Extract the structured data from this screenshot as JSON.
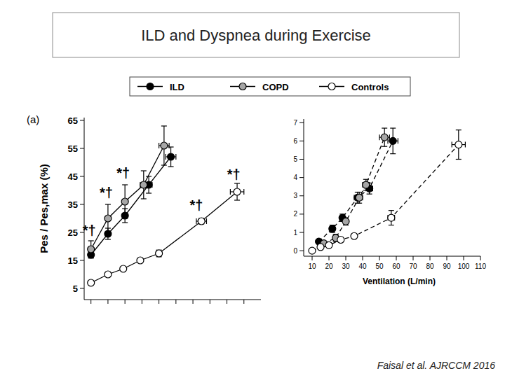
{
  "title": "ILD and Dyspnea during Exercise",
  "footer": "Faisal et al. AJRCCM 2016",
  "chart_data": [
    {
      "type": "line",
      "panel_label": "(a)",
      "ylabel": "Pes / Pes,max (%)",
      "xlim": [
        6,
        110
      ],
      "xticks": [
        10,
        20,
        30,
        40,
        50,
        60,
        70,
        80,
        90,
        100
      ],
      "ylim": [
        1,
        66
      ],
      "yticks": [
        5,
        15,
        25,
        35,
        45,
        55,
        65
      ],
      "tick_labels": "y",
      "legend": "top",
      "line_style": "solid",
      "marker": "circle",
      "series": [
        {
          "name": "ILD",
          "color": "#000000",
          "x": [
            10,
            20,
            30,
            44,
            57
          ],
          "values": [
            17,
            24.5,
            31,
            42,
            52
          ],
          "errors": [
            1.2,
            2,
            2.5,
            3,
            3.5
          ],
          "x_errors": [
            0,
            0,
            0,
            2,
            3
          ]
        },
        {
          "name": "COPD",
          "color": "#a6a6a6",
          "x": [
            10,
            20,
            30,
            41,
            53
          ],
          "values": [
            19,
            30,
            36,
            42,
            56
          ],
          "errors": [
            3,
            5,
            6,
            5,
            7
          ],
          "x_errors": [
            0,
            0,
            0,
            2,
            3
          ]
        },
        {
          "name": "Controls",
          "color": "#ffffff",
          "x": [
            10,
            20,
            29,
            39,
            50,
            75,
            96
          ],
          "values": [
            7,
            10,
            12,
            15,
            17.5,
            29,
            39.5
          ],
          "errors": [
            0.5,
            0.5,
            0.5,
            0.8,
            1.2,
            1,
            3
          ],
          "x_errors": [
            0,
            0,
            0,
            0,
            1.5,
            3,
            4
          ]
        }
      ],
      "annotations": [
        {
          "x": 9,
          "y": 24,
          "text": "*†"
        },
        {
          "x": 19,
          "y": 37.5,
          "text": "*†"
        },
        {
          "x": 29,
          "y": 44.5,
          "text": "*†"
        },
        {
          "x": 72,
          "y": 33,
          "text": "*†"
        },
        {
          "x": 94,
          "y": 44,
          "text": "*†"
        }
      ]
    },
    {
      "type": "line",
      "xlabel": "Ventilation (L/min)",
      "xlim": [
        5,
        110
      ],
      "xticks": [
        10,
        20,
        30,
        40,
        50,
        60,
        70,
        80,
        90,
        100,
        110
      ],
      "ylim": [
        -0.3,
        7.2
      ],
      "yticks": [
        0,
        1,
        2,
        3,
        4,
        5,
        6,
        7
      ],
      "line_style": "dashed",
      "marker": "circle",
      "series": [
        {
          "color": "#000000",
          "x": [
            14,
            22,
            28,
            37,
            44,
            58
          ],
          "values": [
            0.5,
            1.2,
            1.8,
            2.9,
            3.4,
            6.0
          ],
          "errors": [
            0.1,
            0.2,
            0.2,
            0.3,
            0.3,
            0.7
          ],
          "x_errors": [
            1,
            1,
            1,
            2,
            2,
            3
          ]
        },
        {
          "color": "#a6a6a6",
          "x": [
            17,
            24,
            30,
            38,
            42,
            53
          ],
          "values": [
            0.4,
            0.7,
            1.6,
            2.9,
            3.6,
            6.2
          ],
          "errors": [
            0.1,
            0.2,
            0.2,
            0.3,
            0.3,
            0.5
          ],
          "x_errors": [
            1,
            1,
            1,
            2,
            2,
            3
          ]
        },
        {
          "color": "#ffffff",
          "x": [
            10,
            15,
            20,
            27,
            35,
            57,
            97
          ],
          "values": [
            0,
            0.2,
            0.3,
            0.6,
            0.8,
            1.8,
            5.8
          ],
          "errors": [
            0.05,
            0.1,
            0.1,
            0.1,
            0.1,
            0.4,
            0.8
          ],
          "x_errors": [
            1,
            1,
            1,
            1,
            1,
            2,
            4
          ]
        }
      ]
    }
  ]
}
